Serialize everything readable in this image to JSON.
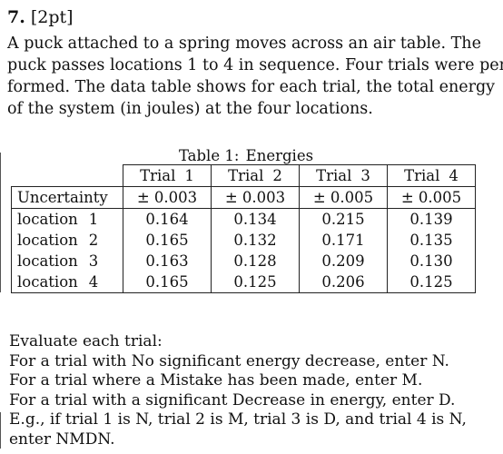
{
  "question": {
    "number": "7.",
    "points": "[2pt]",
    "intro_lines": [
      "A puck attached to a spring moves across an air table. The",
      "puck passes locations 1 to 4 in sequence. Four trials were per-",
      "formed. The data table shows for each trial, the total energy",
      "of the system (in joules) at the four locations."
    ]
  },
  "table": {
    "caption_label": "Table 1:",
    "caption_title": "Energies",
    "trial_word": "Trial",
    "trial_numbers": [
      "1",
      "2",
      "3",
      "4"
    ],
    "uncertainty_label": "Uncertainty",
    "uncertainties": [
      "± 0.003",
      "± 0.003",
      "± 0.005",
      "± 0.005"
    ],
    "location_word": "location",
    "rows": [
      {
        "location": "1",
        "values": [
          "0.164",
          "0.134",
          "0.215",
          "0.139"
        ]
      },
      {
        "location": "2",
        "values": [
          "0.165",
          "0.132",
          "0.171",
          "0.135"
        ]
      },
      {
        "location": "3",
        "values": [
          "0.163",
          "0.128",
          "0.209",
          "0.130"
        ]
      },
      {
        "location": "4",
        "values": [
          "0.165",
          "0.125",
          "0.206",
          "0.125"
        ]
      }
    ]
  },
  "instructions": [
    "Evaluate each trial:",
    "For a trial with No significant energy decrease, enter N.",
    "For a trial where a Mistake has been made, enter M.",
    "For a trial with a significant Decrease in energy, enter D.",
    "E.g., if trial 1 is N, trial 2 is M, trial 3 is D, and trial 4 is N,",
    "enter NMDN."
  ]
}
